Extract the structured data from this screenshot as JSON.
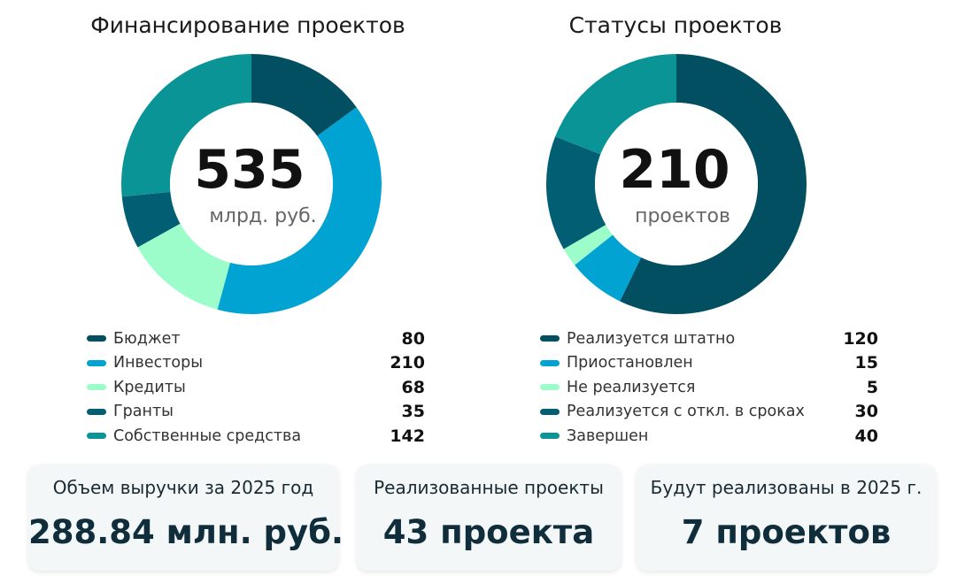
{
  "chart_data": [
    {
      "type": "pie",
      "title": "Финансирование проектов",
      "center_value": "535",
      "center_unit": "млрд. руб.",
      "categories": [
        "Бюджет",
        "Инвесторы",
        "Кредиты",
        "Гранты",
        "Собственные средства"
      ],
      "values": [
        80,
        210,
        68,
        35,
        142
      ],
      "colors": [
        "#024f62",
        "#00a3d1",
        "#9cfdca",
        "#025e72",
        "#0b9496"
      ],
      "legend_position": "bottom"
    },
    {
      "type": "pie",
      "title": "Статусы проектов",
      "center_value": "210",
      "center_unit": "проектов",
      "categories": [
        "Реализуется штатно",
        "Приостановлен",
        "Не реализуется",
        "Реализуется с откл. в сроках",
        "Завершен"
      ],
      "values": [
        120,
        15,
        5,
        30,
        40
      ],
      "colors": [
        "#024f62",
        "#00a3d1",
        "#9cfdca",
        "#025e72",
        "#0b9496"
      ],
      "legend_position": "bottom"
    }
  ],
  "kpis": [
    {
      "label": "Объем выручки за 2025 год",
      "value": "288.84 млн. руб."
    },
    {
      "label": "Реализованные проекты",
      "value": "43 проекта"
    },
    {
      "label": "Будут реализованы в 2025 г.",
      "value": "7 проектов"
    }
  ]
}
